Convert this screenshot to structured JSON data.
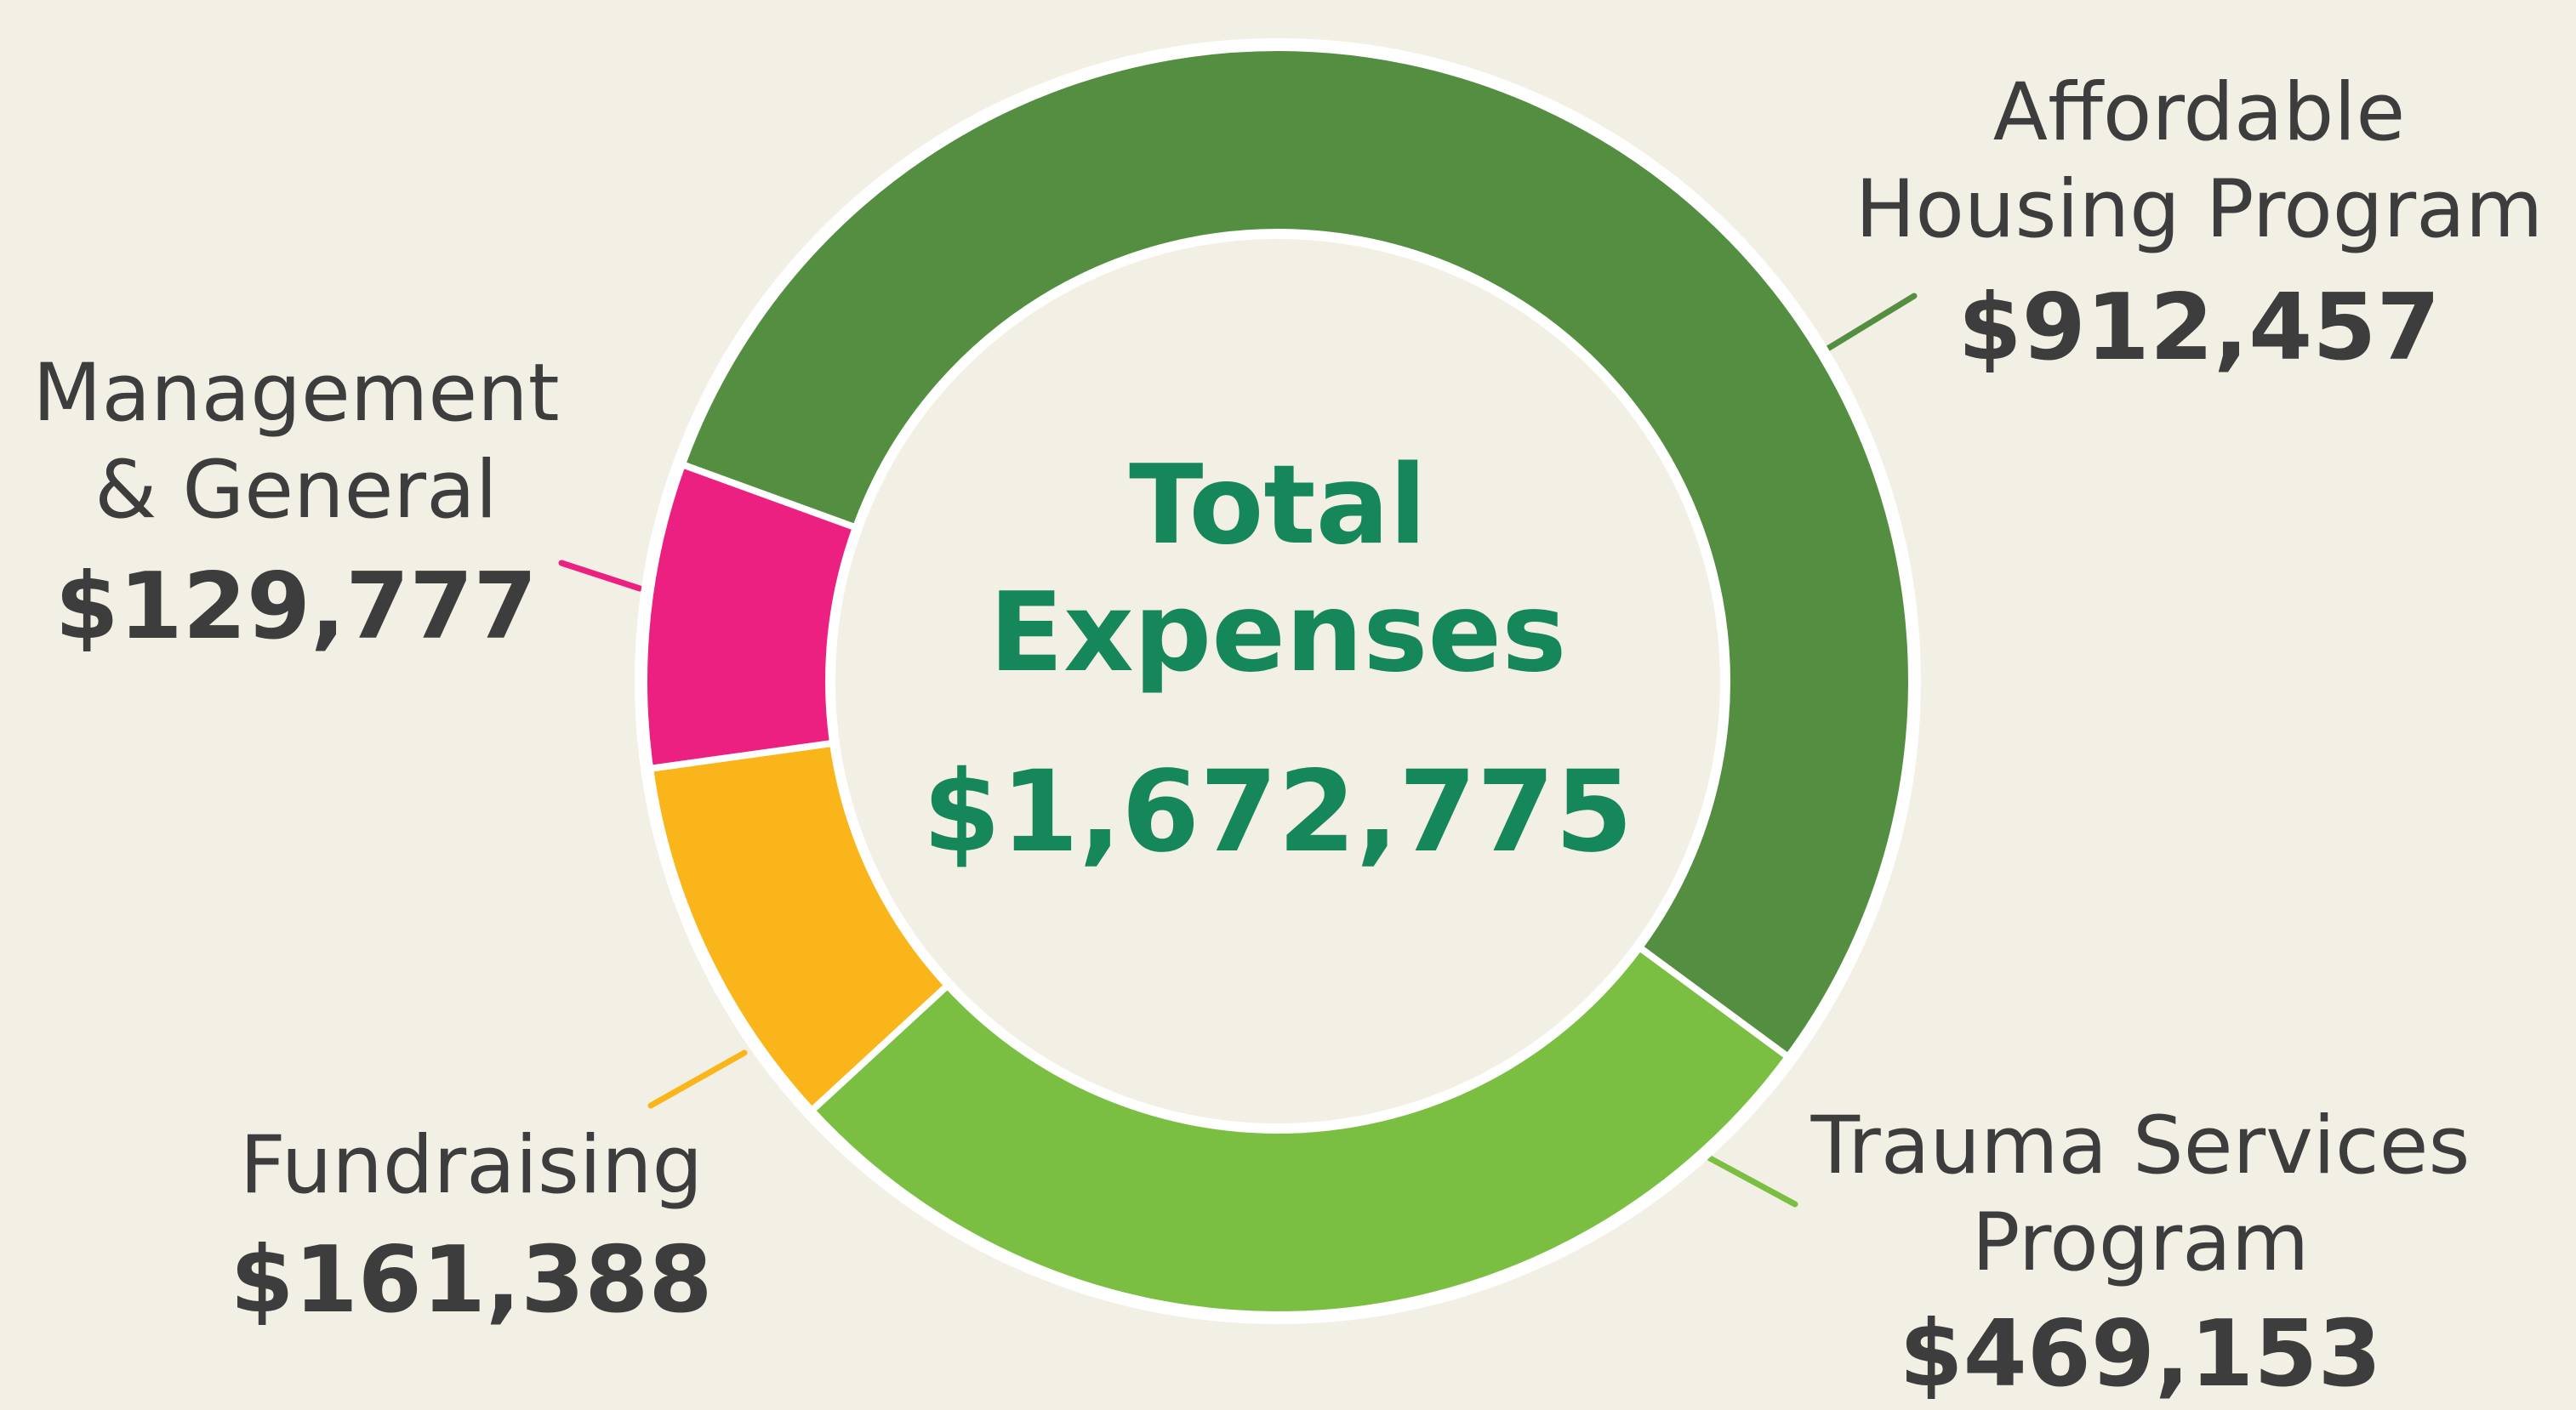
{
  "chart_data": {
    "type": "donut",
    "categories": [
      "Affordable Housing Program",
      "Trauma Services Program",
      "Fundraising",
      "Management & General"
    ],
    "values": [
      912457,
      469153,
      161388,
      129777
    ],
    "value_labels": [
      "$912,457",
      "$469,153",
      "$161,388",
      "$129,777"
    ],
    "colors": [
      "#548f41",
      "#7bbf42",
      "#f9b51a",
      "#ec2080"
    ],
    "center_title": "Total Expenses",
    "total": 1672775,
    "total_label": "$1,672,775"
  }
}
